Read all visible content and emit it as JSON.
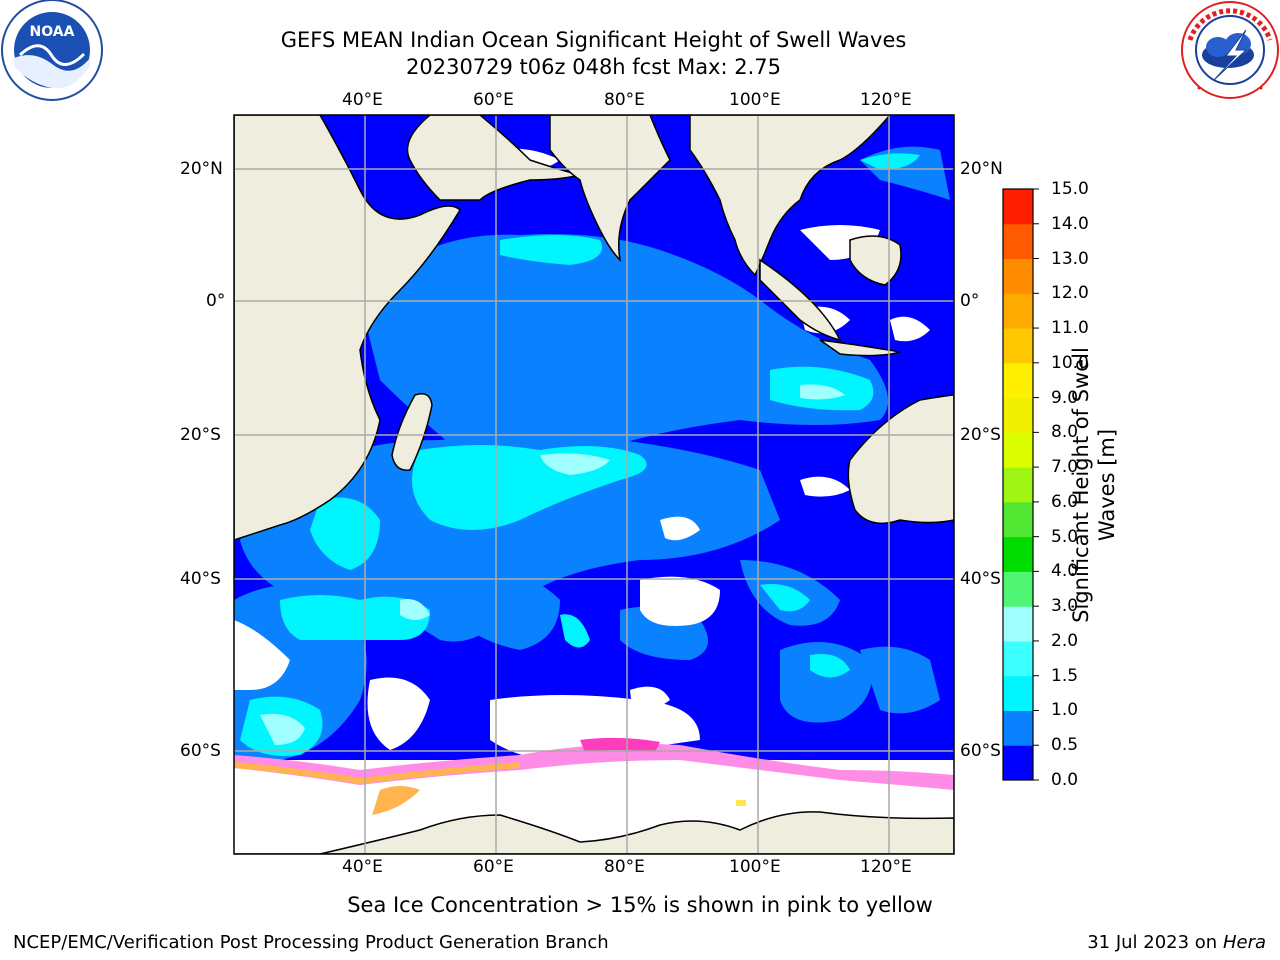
{
  "header": {
    "title_line1": "GEFS MEAN Indian Ocean Significant Height of Swell Waves",
    "title_line2": "20230729 t06z 048h fcst   Max: 2.75"
  },
  "logos": {
    "left_text": "NOAA",
    "left_ring_text": "NATIONAL OCEANIC AND ATMOSPHERIC ADMINISTRATION · U.S. DEPARTMENT OF COMMERCE",
    "right_ring_text": "NATIONAL WEATHER SERVICE"
  },
  "map": {
    "lon_ticks_top": [
      "40°E",
      "60°E",
      "80°E",
      "100°E",
      "120°E"
    ],
    "lon_ticks_bottom": [
      "40°E",
      "60°E",
      "80°E",
      "100°E",
      "120°E"
    ],
    "lat_ticks_left": [
      "20°N",
      "0°",
      "20°S",
      "40°S",
      "60°S"
    ],
    "lat_ticks_right": [
      "20°N",
      "0°",
      "20°S",
      "40°S",
      "60°S"
    ],
    "colors": {
      "land": "#efedde",
      "coast": "#000000",
      "grid": "#aaaaaa",
      "no_data": "#ffffff",
      "ice": [
        "#ff3cbe",
        "#ff8ce6",
        "#ffb450",
        "#ffe650"
      ]
    }
  },
  "colorbar": {
    "label": "Significant Height of Swell Waves [m]",
    "ticks": [
      "0.0",
      "0.5",
      "1.0",
      "1.5",
      "2.0",
      "3.0",
      "4.0",
      "5.0",
      "6.0",
      "7.0",
      "8.0",
      "9.0",
      "10.0",
      "11.0",
      "12.0",
      "13.0",
      "14.0",
      "15.0"
    ],
    "colors": [
      "#0000ff",
      "#0a82ff",
      "#00f5ff",
      "#3cffff",
      "#a0ffff",
      "#50f573",
      "#00dc00",
      "#50e632",
      "#a0f514",
      "#dcff00",
      "#f0f000",
      "#fff000",
      "#ffc800",
      "#ffaa00",
      "#ff8c00",
      "#ff5a00",
      "#ff1e00"
    ]
  },
  "footer": {
    "caption": "Sea Ice Concentration > 15% is shown in pink to yellow",
    "credit": "NCEP/EMC/Verification Post Processing Product Generation Branch",
    "date": "31 Jul 2023 on ",
    "machine": "Hera"
  }
}
